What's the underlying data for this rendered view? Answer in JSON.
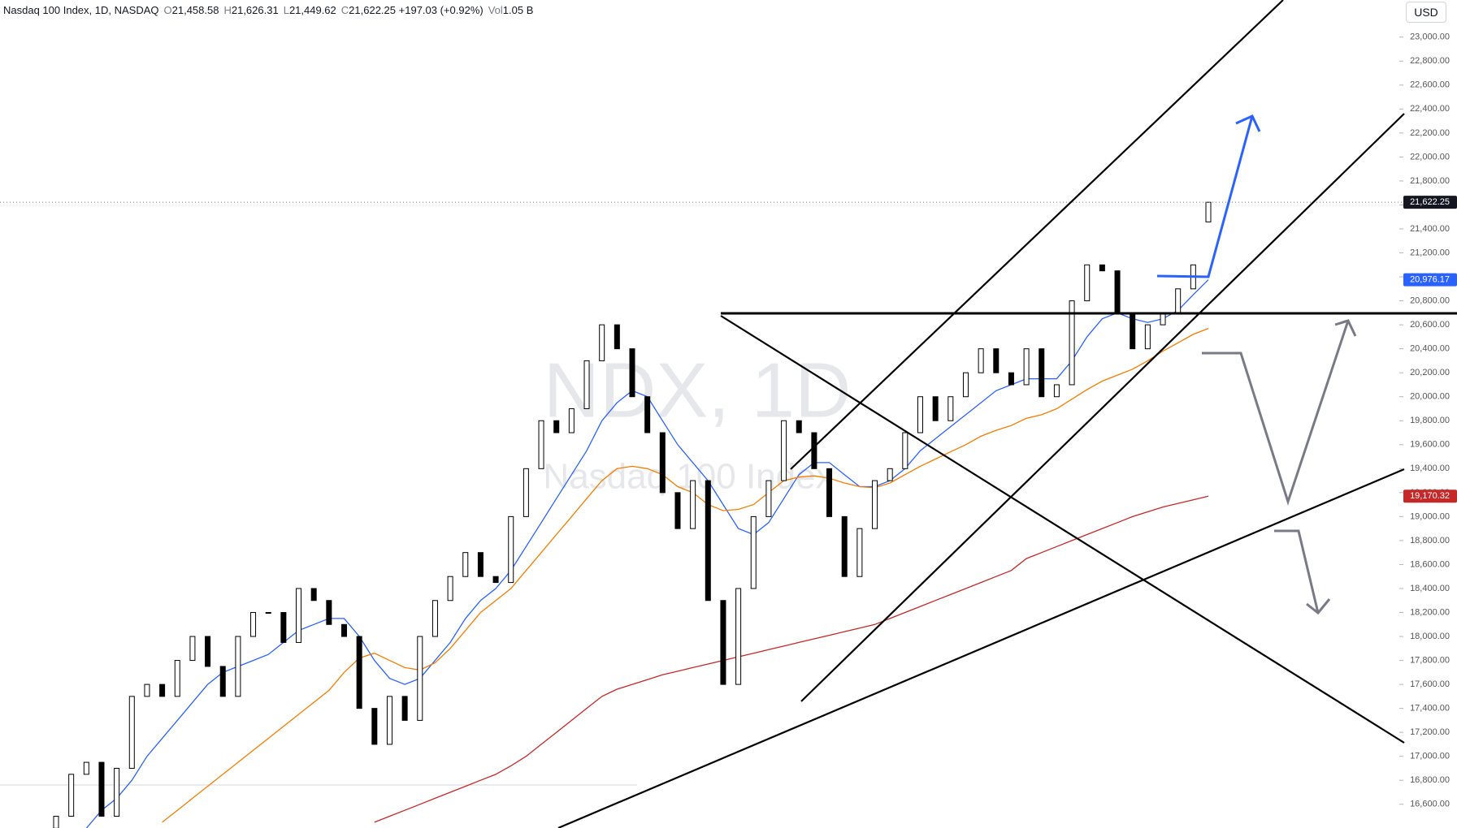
{
  "header": {
    "symbol": "Nasdaq 100 Index, 1D, NASDAQ",
    "fields": [
      {
        "key": "O",
        "value": "21,458.58"
      },
      {
        "key": "H",
        "value": "21,626.31"
      },
      {
        "key": "L",
        "value": "21,449.62"
      },
      {
        "key": "C",
        "value": "21,622.25"
      }
    ],
    "change": "+197.03 (+0.92%)",
    "volume_key": "Vol",
    "volume": "1.05 B"
  },
  "currency": "USD",
  "watermark": {
    "symbol": "NDX, 1D",
    "name": "Nasdaq 100 Index"
  },
  "chart_data": {
    "type": "candlestick",
    "open": [
      16400,
      16500,
      16850,
      16950,
      16500,
      16900,
      17500,
      17600,
      17500,
      17800,
      18000,
      17750,
      17500,
      18000,
      18200,
      18200,
      17950,
      18400,
      18300,
      18100,
      18000,
      17400,
      17100,
      17500,
      17300,
      18000,
      18300,
      18500,
      18700,
      18500,
      18450,
      19000,
      19400,
      19800,
      19700,
      19900,
      20300,
      20600,
      20400,
      20000,
      19700,
      19200,
      18900,
      19300,
      18300,
      17600,
      18400,
      19000,
      19300,
      19800,
      19700,
      19400,
      19000,
      18500,
      18900,
      19300,
      19400,
      19700,
      20000,
      19800,
      20000,
      20200,
      20400,
      20200,
      20100,
      20400,
      20000,
      20100,
      20800,
      21100,
      21050,
      20700,
      20400,
      20600,
      20700,
      20900,
      21458.58
    ],
    "close": [
      16500,
      16850,
      16950,
      16500,
      16900,
      17500,
      17600,
      17500,
      17800,
      18000,
      17750,
      17500,
      18000,
      18200,
      18200,
      17950,
      18400,
      18300,
      18100,
      18000,
      17400,
      17100,
      17500,
      17300,
      18000,
      18300,
      18500,
      18700,
      18500,
      18450,
      19000,
      19400,
      19800,
      19700,
      19900,
      20300,
      20600,
      20400,
      20000,
      19700,
      19200,
      18900,
      19300,
      18300,
      17600,
      18400,
      19000,
      19300,
      19800,
      19700,
      19400,
      19000,
      18500,
      18900,
      19300,
      19400,
      19700,
      20000,
      19800,
      20000,
      20200,
      20400,
      20200,
      20100,
      20400,
      20000,
      20100,
      20800,
      21100,
      21050,
      20700,
      20400,
      20600,
      20700,
      20900,
      21100,
      21622.25
    ],
    "series": [
      {
        "color": "#2962ff",
        "values": [
          null,
          null,
          16400,
          16550,
          16650,
          16800,
          17000,
          17150,
          17300,
          17450,
          17600,
          17700,
          17750,
          17800,
          17850,
          17950,
          18050,
          18100,
          18150,
          18150,
          18000,
          17800,
          17650,
          17600,
          17650,
          17800,
          17950,
          18150,
          18300,
          18400,
          18550,
          18750,
          18950,
          19150,
          19350,
          19550,
          19800,
          19950,
          20050,
          20000,
          19800,
          19600,
          19450,
          19300,
          19100,
          18900,
          18850,
          18950,
          19150,
          19350,
          19450,
          19450,
          19350,
          19250,
          19250,
          19300,
          19400,
          19550,
          19650,
          19750,
          19850,
          19950,
          20050,
          20100,
          20150,
          20150,
          20150,
          20300,
          20500,
          20650,
          20700,
          20650,
          20620,
          20650,
          20720,
          20850,
          20976
        ]
      },
      {
        "color": "#f57c00",
        "values": [
          null,
          null,
          null,
          null,
          null,
          null,
          null,
          16450,
          16550,
          16650,
          16750,
          16850,
          16950,
          17050,
          17150,
          17250,
          17350,
          17450,
          17550,
          17700,
          17820,
          17860,
          17800,
          17740,
          17720,
          17780,
          17900,
          18050,
          18200,
          18300,
          18400,
          18550,
          18700,
          18850,
          19000,
          19150,
          19300,
          19400,
          19420,
          19400,
          19350,
          19250,
          19200,
          19100,
          19050,
          19060,
          19100,
          19200,
          19300,
          19330,
          19340,
          19320,
          19280,
          19250,
          19240,
          19280,
          19350,
          19420,
          19480,
          19540,
          19600,
          19670,
          19720,
          19760,
          19820,
          19850,
          19900,
          19980,
          20060,
          20130,
          20180,
          20230,
          20300,
          20380,
          20450,
          20520,
          20570
        ]
      },
      {
        "color": "#c62828",
        "values": [
          null,
          null,
          null,
          null,
          null,
          null,
          null,
          null,
          null,
          null,
          null,
          null,
          null,
          null,
          null,
          null,
          null,
          null,
          null,
          null,
          null,
          16450,
          16500,
          16550,
          16600,
          16650,
          16700,
          16750,
          16800,
          16850,
          16920,
          17000,
          17100,
          17200,
          17300,
          17400,
          17500,
          17560,
          17600,
          17640,
          17680,
          17710,
          17740,
          17770,
          17800,
          17830,
          17860,
          17890,
          17920,
          17950,
          17980,
          18010,
          18040,
          18070,
          18100,
          18150,
          18200,
          18250,
          18300,
          18350,
          18400,
          18450,
          18500,
          18550,
          18650,
          18700,
          18750,
          18800,
          18850,
          18900,
          18950,
          19000,
          19040,
          19080,
          19110,
          19140,
          19170
        ]
      }
    ],
    "ylim": [
      16400,
      23200
    ],
    "yticks": [
      {
        "value": 16600,
        "label": "16,600.00"
      },
      {
        "value": 16800,
        "label": "16,800.00"
      },
      {
        "value": 17000,
        "label": "17,000.00"
      },
      {
        "value": 17200,
        "label": "17,200.00"
      },
      {
        "value": 17400,
        "label": "17,400.00"
      },
      {
        "value": 17600,
        "label": "17,600.00"
      },
      {
        "value": 17800,
        "label": "17,800.00"
      },
      {
        "value": 18000,
        "label": "18,000.00"
      },
      {
        "value": 18200,
        "label": "18,200.00"
      },
      {
        "value": 18400,
        "label": "18,400.00"
      },
      {
        "value": 18600,
        "label": "18,600.00"
      },
      {
        "value": 18800,
        "label": "18,800.00"
      },
      {
        "value": 19000,
        "label": "19,000.00"
      },
      {
        "value": 19200,
        "label": "19,200.00"
      },
      {
        "value": 19400,
        "label": "19,400.00"
      },
      {
        "value": 19600,
        "label": "19,600.00"
      },
      {
        "value": 19800,
        "label": "19,800.00"
      },
      {
        "value": 20000,
        "label": "20,000.00"
      },
      {
        "value": 20200,
        "label": "20,200.00"
      },
      {
        "value": 20400,
        "label": "20,400.00"
      },
      {
        "value": 20600,
        "label": "20,600.00"
      },
      {
        "value": 20800,
        "label": "20,800.00"
      },
      {
        "value": 21000,
        "label": "21,000.00"
      },
      {
        "value": 21200,
        "label": "21,200.00"
      },
      {
        "value": 21400,
        "label": "21,400.00"
      },
      {
        "value": 21600,
        "label": "21,600.00"
      },
      {
        "value": 21800,
        "label": "21,800.00"
      },
      {
        "value": 22000,
        "label": "22,000.00"
      },
      {
        "value": 22200,
        "label": "22,200.00"
      },
      {
        "value": 22400,
        "label": "22,400.00"
      },
      {
        "value": 22600,
        "label": "22,600.00"
      },
      {
        "value": 22800,
        "label": "22,800.00"
      },
      {
        "value": 23000,
        "label": "23,000.00"
      }
    ],
    "price_tags": [
      {
        "value": 21622.25,
        "label": "21,622.25",
        "color": "#131722"
      },
      {
        "value": 20976.17,
        "label": "20,976.17",
        "color": "#2962ff"
      },
      {
        "value": 19170.32,
        "label": "19,170.32",
        "color": "#c62828"
      }
    ]
  }
}
